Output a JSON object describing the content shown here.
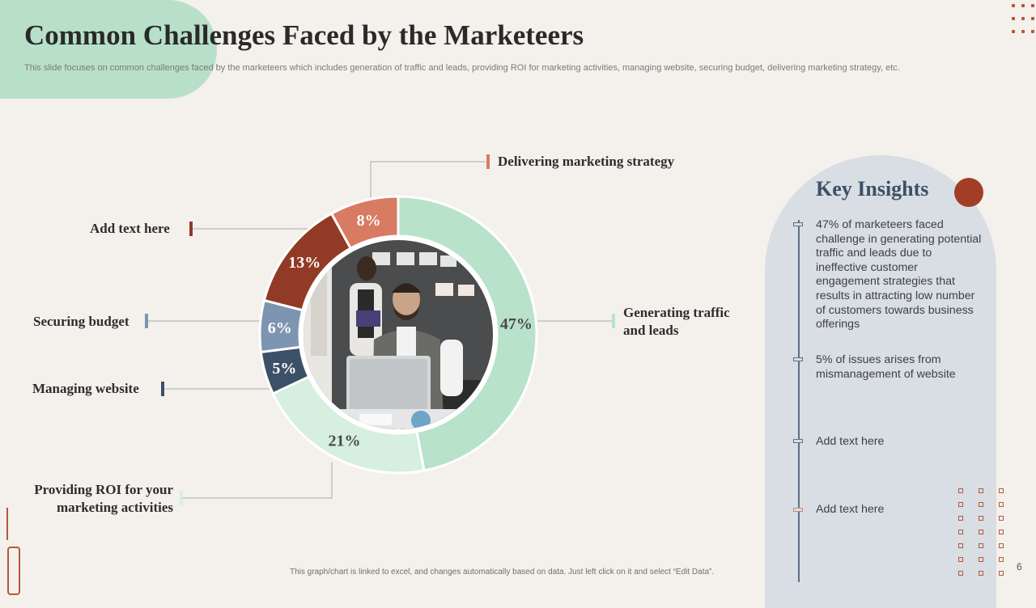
{
  "slide": {
    "title": "Common  Challenges Faced by the Marketeers",
    "subtitle": "This slide focuses on common challenges faced by the marketeers which includes generation of traffic and leads, providing ROI for marketing activities, managing website, securing budget, delivering marketing strategy, etc.",
    "footer": "This graph/chart is linked to excel, and changes automatically based on data. Just left click on it and select “Edit Data”.",
    "page_number": "6"
  },
  "chart_data": {
    "type": "pie",
    "title": "",
    "categories": [
      "Generating traffic and leads",
      "Providing ROI for your marketing activities",
      "Managing website",
      "Securing budget",
      "Add text here",
      "Delivering marketing strategy"
    ],
    "values": [
      47,
      21,
      5,
      6,
      13,
      8
    ],
    "value_labels": [
      "47%",
      "21%",
      "5%",
      "6%",
      "13%",
      "8%"
    ],
    "colors": [
      "#b8e2c9",
      "#d6efdf",
      "#3c5068",
      "#7d95b0",
      "#913a25",
      "#d87b62"
    ],
    "label_colors": [
      "#4a4a4a",
      "#4a4a4a",
      "#ffffff",
      "#ffffff",
      "#ffffff",
      "#ffffff"
    ]
  },
  "callouts": {
    "delivering": "Delivering marketing strategy",
    "add_text": "Add text here",
    "securing": "Securing budget",
    "managing": "Managing website",
    "roi": "Providing ROI for your marketing activities",
    "traffic": "Generating traffic and leads"
  },
  "insights": {
    "title": "Key Insights",
    "items": [
      "47% of marketeers faced challenge in generating potential traffic and leads due to ineffective customer engagement strategies that results in  attracting low number of customers towards business offerings",
      "5% of issues arises from mismanagement of website",
      "Add text here",
      "Add text here"
    ]
  },
  "icons": {
    "center": "person-at-laptop-photo",
    "panel": "red-circle-icon"
  }
}
